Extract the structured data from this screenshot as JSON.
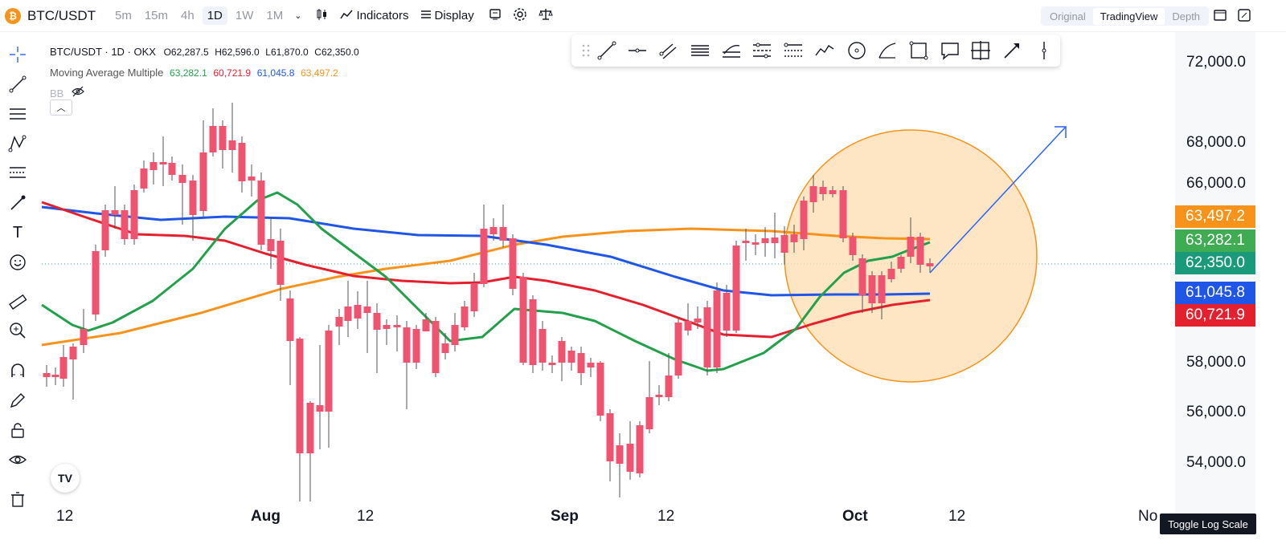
{
  "header": {
    "symbol": "BTC/USDT",
    "timeframes": [
      "5m",
      "15m",
      "4h",
      "1D",
      "1W",
      "1M"
    ],
    "active_timeframe": "1D",
    "indicators_label": "Indicators",
    "display_label": "Display",
    "view_modes": [
      "Original",
      "TradingView",
      "Depth"
    ],
    "active_view": "TradingView"
  },
  "legend": {
    "title": "BTC/USDT · 1D · OKX",
    "open": "O62,287.5",
    "high": "H62,596.0",
    "low": "L61,870.0",
    "close": "C62,350.0",
    "indicator_name": "Moving Average Multiple",
    "ma_values": [
      "63,282.1",
      "60,721.9",
      "61,045.8",
      "63,497.2"
    ],
    "ma_colors": [
      "#22a04b",
      "#e5202e",
      "#2056e8",
      "#f7931a"
    ],
    "bb_label": "BB"
  },
  "price_labels": [
    {
      "value": "63,497.2",
      "color": "#f7931a"
    },
    {
      "value": "63,282.1",
      "color": "#3fab52"
    },
    {
      "value": "62,350.0",
      "color": "#1a9a7a"
    },
    {
      "value": "61,045.8",
      "color": "#2056e8"
    },
    {
      "value": "60,721.9",
      "color": "#e5202e"
    }
  ],
  "y_axis_ticks": [
    "72,000.0",
    "68,000.0",
    "66,000.0",
    "58,000.0",
    "56,000.0",
    "54,000.0"
  ],
  "x_axis_ticks": [
    "12",
    "Aug",
    "12",
    "Sep",
    "12",
    "Oct",
    "12",
    "No"
  ],
  "toggle_label": "Toggle Log Scale",
  "logo_text": "TV",
  "colors": {
    "up": "#26a69a",
    "down": "#ef5370",
    "background": "#ffffff"
  }
}
